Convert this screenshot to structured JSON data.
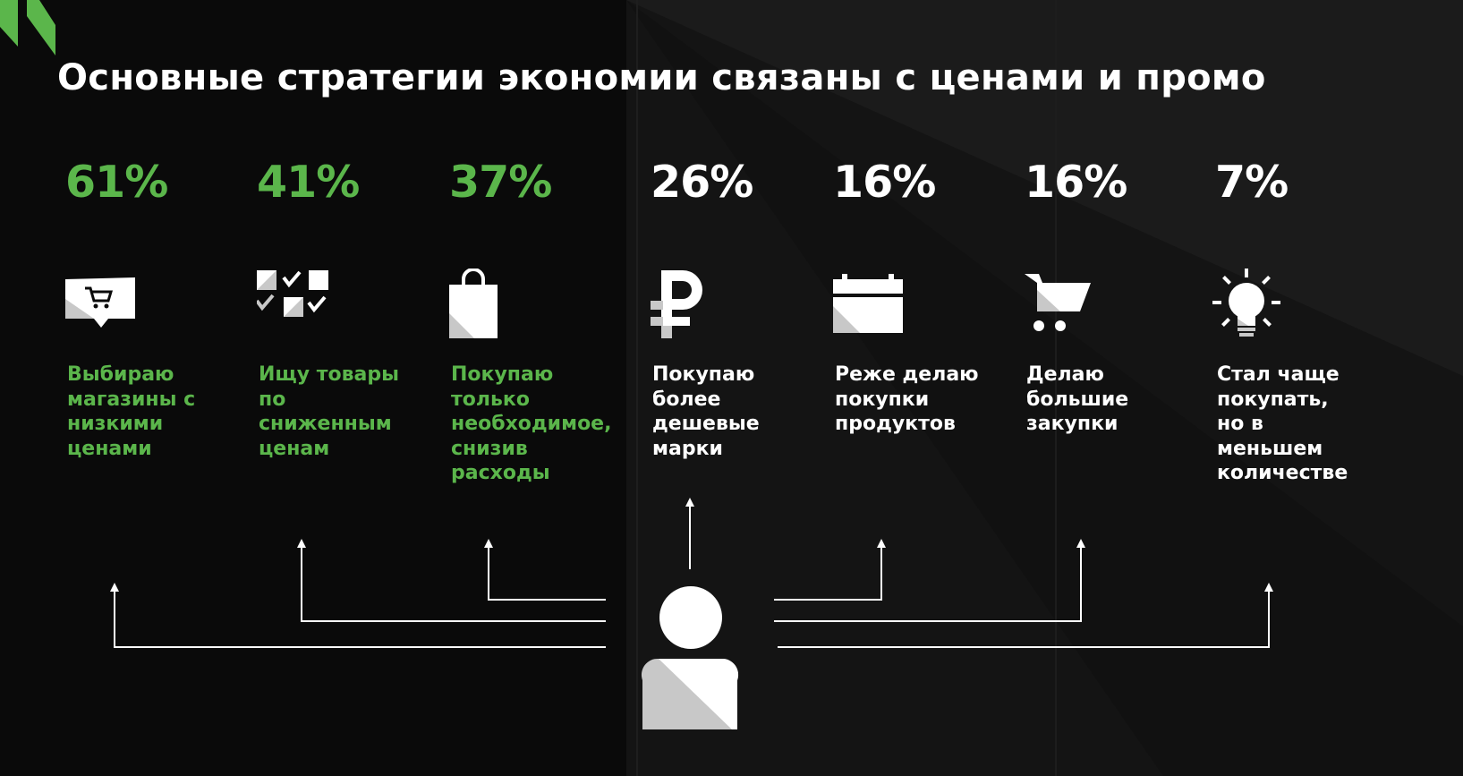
{
  "title": "Основные стратегии экономии связаны с ценами и промо",
  "colors": {
    "accent": "#5bb64b",
    "text": "#ffffff",
    "background": "#0a0a0a",
    "icon_grey": "#c8c8c8"
  },
  "strategies": [
    {
      "percent": "61%",
      "label": "Выбираю\nмагазины с\nнизкими\nценами",
      "icon": "shopping-cart-sign-icon",
      "highlight": true
    },
    {
      "percent": "41%",
      "label": "Ищу товары\nпо\nсниженным\nценам",
      "icon": "discount-grid-icon",
      "highlight": true
    },
    {
      "percent": "37%",
      "label": "Покупаю\nтолько\nнеобходимое,\nснизив\nрасходы",
      "icon": "shopping-bag-icon",
      "highlight": true
    },
    {
      "percent": "26%",
      "label": "Покупаю\nболее\nдешевые\nмарки",
      "icon": "ruble-sign-icon",
      "highlight": false
    },
    {
      "percent": "16%",
      "label": "Реже делаю\nпокупки\nпродуктов",
      "icon": "calendar-icon",
      "highlight": false
    },
    {
      "percent": "16%",
      "label": "Делаю\nбольшие\nзакупки",
      "icon": "shopping-cart-icon",
      "highlight": false
    },
    {
      "percent": "7%",
      "label": "Стал чаще\nпокупать,\nно в\nменьшем\nколичестве",
      "icon": "light-bulb-icon",
      "highlight": false
    }
  ]
}
